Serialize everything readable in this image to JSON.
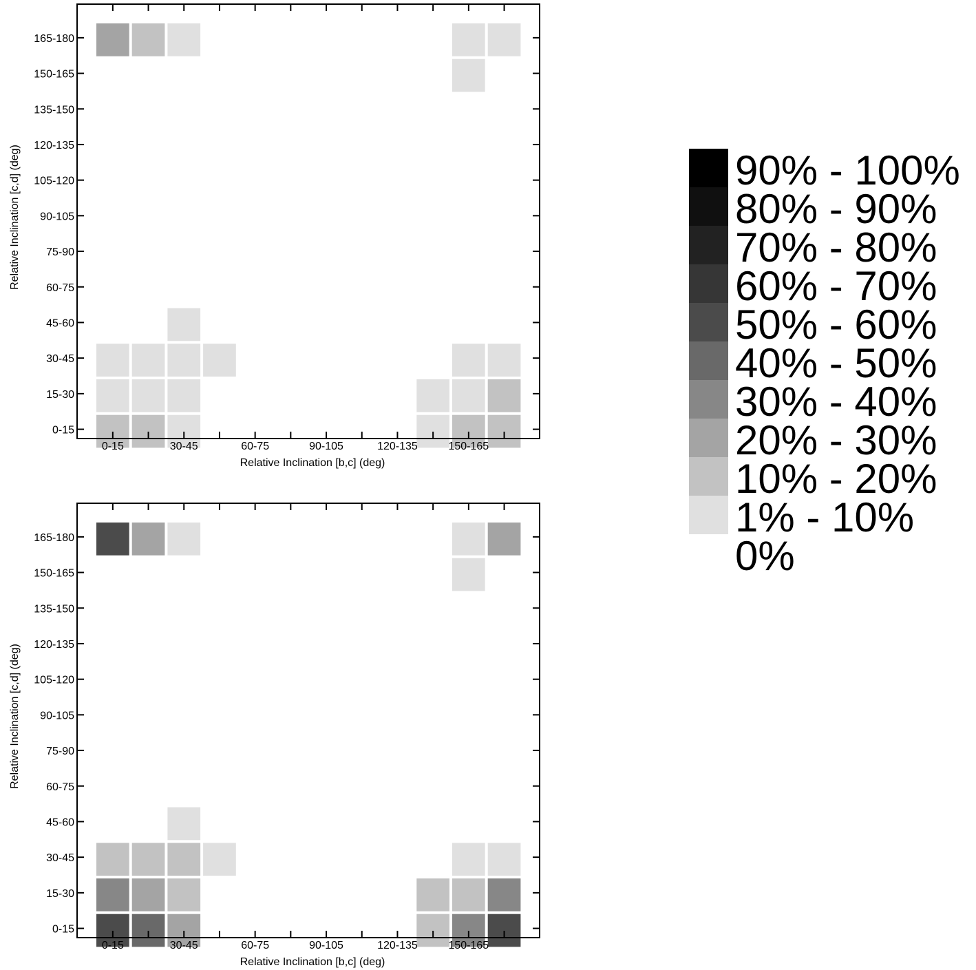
{
  "chart_data": [
    {
      "type": "heatmap",
      "xlabel": "Relative Inclination [b,c] (deg)",
      "ylabel": "Relative Inclination [c,d] (deg)",
      "x_categories": [
        "0-15",
        "15-30",
        "30-45",
        "45-60",
        "60-75",
        "75-90",
        "90-105",
        "105-120",
        "120-135",
        "135-150",
        "150-165",
        "165-180"
      ],
      "x_tick_labels": [
        "0-15",
        "30-45",
        "60-75",
        "90-105",
        "120-135",
        "150-165"
      ],
      "y_categories": [
        "0-15",
        "15-30",
        "30-45",
        "45-60",
        "60-75",
        "75-90",
        "90-105",
        "105-120",
        "120-135",
        "135-150",
        "150-165",
        "165-180"
      ],
      "y_tick_labels": [
        "165-180",
        "150-165",
        "135-150",
        "120-135",
        "105-120",
        "90-105",
        "75-90",
        "60-75",
        "45-60",
        "30-45",
        "15-30",
        "0-15"
      ],
      "cells": [
        {
          "x": "0-15",
          "y": "165-180",
          "bin": "20% - 30%"
        },
        {
          "x": "15-30",
          "y": "165-180",
          "bin": "10% - 20%"
        },
        {
          "x": "30-45",
          "y": "165-180",
          "bin": "1% - 10%"
        },
        {
          "x": "150-165",
          "y": "165-180",
          "bin": "1% - 10%"
        },
        {
          "x": "165-180",
          "y": "165-180",
          "bin": "1% - 10%"
        },
        {
          "x": "150-165",
          "y": "150-165",
          "bin": "1% - 10%"
        },
        {
          "x": "30-45",
          "y": "45-60",
          "bin": "1% - 10%"
        },
        {
          "x": "0-15",
          "y": "30-45",
          "bin": "1% - 10%"
        },
        {
          "x": "15-30",
          "y": "30-45",
          "bin": "1% - 10%"
        },
        {
          "x": "30-45",
          "y": "30-45",
          "bin": "1% - 10%"
        },
        {
          "x": "45-60",
          "y": "30-45",
          "bin": "1% - 10%"
        },
        {
          "x": "150-165",
          "y": "30-45",
          "bin": "1% - 10%"
        },
        {
          "x": "165-180",
          "y": "30-45",
          "bin": "1% - 10%"
        },
        {
          "x": "0-15",
          "y": "15-30",
          "bin": "1% - 10%"
        },
        {
          "x": "15-30",
          "y": "15-30",
          "bin": "1% - 10%"
        },
        {
          "x": "30-45",
          "y": "15-30",
          "bin": "1% - 10%"
        },
        {
          "x": "135-150",
          "y": "15-30",
          "bin": "1% - 10%"
        },
        {
          "x": "150-165",
          "y": "15-30",
          "bin": "1% - 10%"
        },
        {
          "x": "165-180",
          "y": "15-30",
          "bin": "10% - 20%"
        },
        {
          "x": "0-15",
          "y": "0-15",
          "bin": "10% - 20%"
        },
        {
          "x": "15-30",
          "y": "0-15",
          "bin": "10% - 20%"
        },
        {
          "x": "30-45",
          "y": "0-15",
          "bin": "1% - 10%"
        },
        {
          "x": "135-150",
          "y": "0-15",
          "bin": "1% - 10%"
        },
        {
          "x": "150-165",
          "y": "0-15",
          "bin": "10% - 20%"
        },
        {
          "x": "165-180",
          "y": "0-15",
          "bin": "10% - 20%"
        }
      ]
    },
    {
      "type": "heatmap",
      "xlabel": "Relative Inclination [b,c] (deg)",
      "ylabel": "Relative Inclination [c,d] (deg)",
      "x_categories": [
        "0-15",
        "15-30",
        "30-45",
        "45-60",
        "60-75",
        "75-90",
        "90-105",
        "105-120",
        "120-135",
        "135-150",
        "150-165",
        "165-180"
      ],
      "x_tick_labels": [
        "0-15",
        "30-45",
        "60-75",
        "90-105",
        "120-135",
        "150-165"
      ],
      "y_categories": [
        "0-15",
        "15-30",
        "30-45",
        "45-60",
        "60-75",
        "75-90",
        "90-105",
        "105-120",
        "120-135",
        "135-150",
        "150-165",
        "165-180"
      ],
      "y_tick_labels": [
        "165-180",
        "150-165",
        "135-150",
        "120-135",
        "105-120",
        "90-105",
        "75-90",
        "60-75",
        "45-60",
        "30-45",
        "15-30",
        "0-15"
      ],
      "cells": [
        {
          "x": "0-15",
          "y": "165-180",
          "bin": "50% - 60%"
        },
        {
          "x": "15-30",
          "y": "165-180",
          "bin": "20% - 30%"
        },
        {
          "x": "30-45",
          "y": "165-180",
          "bin": "1% - 10%"
        },
        {
          "x": "150-165",
          "y": "165-180",
          "bin": "1% - 10%"
        },
        {
          "x": "165-180",
          "y": "165-180",
          "bin": "20% - 30%"
        },
        {
          "x": "150-165",
          "y": "150-165",
          "bin": "1% - 10%"
        },
        {
          "x": "30-45",
          "y": "45-60",
          "bin": "1% - 10%"
        },
        {
          "x": "0-15",
          "y": "30-45",
          "bin": "10% - 20%"
        },
        {
          "x": "15-30",
          "y": "30-45",
          "bin": "10% - 20%"
        },
        {
          "x": "30-45",
          "y": "30-45",
          "bin": "10% - 20%"
        },
        {
          "x": "45-60",
          "y": "30-45",
          "bin": "1% - 10%"
        },
        {
          "x": "150-165",
          "y": "30-45",
          "bin": "1% - 10%"
        },
        {
          "x": "165-180",
          "y": "30-45",
          "bin": "1% - 10%"
        },
        {
          "x": "0-15",
          "y": "15-30",
          "bin": "30% - 40%"
        },
        {
          "x": "15-30",
          "y": "15-30",
          "bin": "20% - 30%"
        },
        {
          "x": "30-45",
          "y": "15-30",
          "bin": "10% - 20%"
        },
        {
          "x": "135-150",
          "y": "15-30",
          "bin": "10% - 20%"
        },
        {
          "x": "150-165",
          "y": "15-30",
          "bin": "10% - 20%"
        },
        {
          "x": "165-180",
          "y": "15-30",
          "bin": "30% - 40%"
        },
        {
          "x": "0-15",
          "y": "0-15",
          "bin": "50% - 60%"
        },
        {
          "x": "15-30",
          "y": "0-15",
          "bin": "40% - 50%"
        },
        {
          "x": "30-45",
          "y": "0-15",
          "bin": "20% - 30%"
        },
        {
          "x": "135-150",
          "y": "0-15",
          "bin": "10% - 20%"
        },
        {
          "x": "150-165",
          "y": "0-15",
          "bin": "30% - 40%"
        },
        {
          "x": "165-180",
          "y": "0-15",
          "bin": "50% - 60%"
        }
      ]
    }
  ],
  "legend": {
    "entries": [
      {
        "label": "90% - 100%",
        "color": "#000000"
      },
      {
        "label": "80% - 90%",
        "color": "#101010"
      },
      {
        "label": "70% - 80%",
        "color": "#222222"
      },
      {
        "label": "60% - 70%",
        "color": "#363636"
      },
      {
        "label": "50% - 60%",
        "color": "#4b4b4b"
      },
      {
        "label": "40% - 50%",
        "color": "#696969"
      },
      {
        "label": "30% - 40%",
        "color": "#878787"
      },
      {
        "label": "20% - 30%",
        "color": "#a4a4a4"
      },
      {
        "label": "10% - 20%",
        "color": "#c2c2c2"
      },
      {
        "label": "1% - 10%",
        "color": "#e0e0e0"
      },
      {
        "label": "0%",
        "color": "#ffffff"
      }
    ]
  }
}
